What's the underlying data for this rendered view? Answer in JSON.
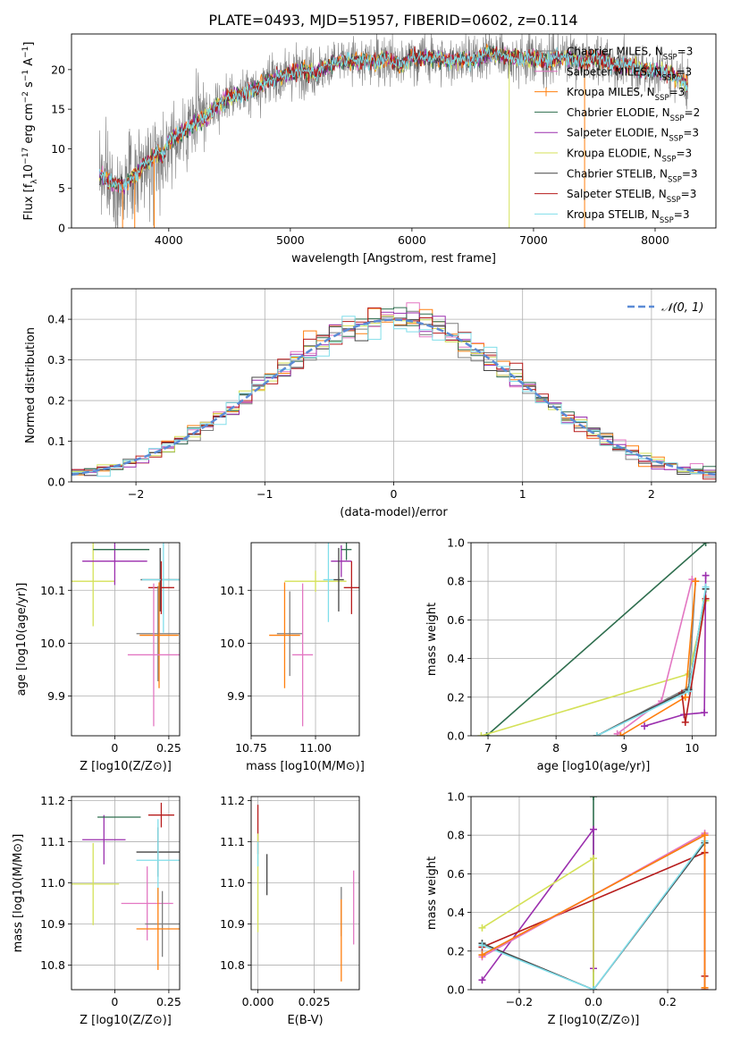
{
  "title": "PLATE=0493, MJD=51957, FIBERID=0602, z=0.114",
  "colors": {
    "chabrier_miles": "#7f7f7f",
    "salpeter_miles": "#e377c2",
    "kroupa_miles": "#ff7f0e",
    "chabrier_elodie": "#2e6e4e",
    "salpeter_elodie": "#9b2fae",
    "kroupa_elodie": "#d4e157",
    "chabrier_stelib": "#444444",
    "salpeter_stelib": "#b71c1c",
    "kroupa_stelib": "#80deea",
    "normal_curve": "#5b8bd6"
  },
  "series_names": [
    "Chabrier MILES, N",
    "Salpeter MILES, N",
    "Kroupa MILES, N",
    "Chabrier ELODIE, N",
    "Salpeter ELODIE, N",
    "Kroupa ELODIE, N",
    "Chabrier STELIB, N",
    "Salpeter STELIB, N",
    "Kroupa STELIB, N"
  ],
  "series_nssp": [
    "3",
    "3",
    "3",
    "2",
    "3",
    "3",
    "3",
    "3",
    "3"
  ],
  "nssp_sub": "SSP",
  "chart_data": [
    {
      "type": "line",
      "id": "spectrum",
      "xlabel": "wavelength [Angstrom, rest frame]",
      "ylabel_parts": [
        "Flux [f",
        "λ",
        "10",
        "−17",
        " erg cm",
        "−2",
        " s",
        "−1",
        " A",
        "−1",
        "]"
      ],
      "xlim": [
        3200,
        8500
      ],
      "ylim": [
        0,
        24.5
      ],
      "xticks": [
        4000,
        5000,
        6000,
        7000,
        8000
      ],
      "yticks": [
        0,
        5,
        10,
        15,
        20
      ],
      "continuum": [
        [
          3450,
          6.5
        ],
        [
          3550,
          5.5
        ],
        [
          3650,
          5.5
        ],
        [
          3700,
          6.5
        ],
        [
          3750,
          7.0
        ],
        [
          3800,
          8.0
        ],
        [
          3850,
          8.5
        ],
        [
          3900,
          9.5
        ],
        [
          3950,
          9.0
        ],
        [
          4000,
          11.0
        ],
        [
          4100,
          12.0
        ],
        [
          4200,
          13.0
        ],
        [
          4300,
          14.0
        ],
        [
          4400,
          15.5
        ],
        [
          4500,
          16.5
        ],
        [
          4600,
          17.0
        ],
        [
          4700,
          17.5
        ],
        [
          4800,
          18.5
        ],
        [
          4900,
          19.0
        ],
        [
          5000,
          19.5
        ],
        [
          5100,
          20.0
        ],
        [
          5200,
          19.5
        ],
        [
          5300,
          20.5
        ],
        [
          5400,
          21.0
        ],
        [
          5500,
          21.0
        ],
        [
          5600,
          21.0
        ],
        [
          5700,
          21.0
        ],
        [
          5800,
          21.5
        ],
        [
          5900,
          20.5
        ],
        [
          6000,
          21.5
        ],
        [
          6100,
          21.5
        ],
        [
          6200,
          21.5
        ],
        [
          6300,
          21.0
        ],
        [
          6400,
          21.5
        ],
        [
          6500,
          21.0
        ],
        [
          6600,
          22.0
        ],
        [
          6700,
          22.0
        ],
        [
          6800,
          21.5
        ],
        [
          6900,
          21.5
        ],
        [
          7000,
          21.5
        ],
        [
          7100,
          21.0
        ],
        [
          7200,
          21.5
        ],
        [
          7300,
          21.5
        ],
        [
          7400,
          21.0
        ],
        [
          7500,
          21.5
        ],
        [
          7600,
          21.0
        ],
        [
          7700,
          20.5
        ],
        [
          7800,
          20.5
        ],
        [
          7900,
          20.0
        ],
        [
          8000,
          20.0
        ],
        [
          8100,
          19.5
        ],
        [
          8200,
          19.0
        ],
        [
          8270,
          18.0
        ]
      ]
    },
    {
      "type": "line",
      "id": "residuals",
      "xlabel": "(data-model)/error",
      "ylabel": "Normed distribution",
      "legend": "𝒩(0, 1)",
      "xlim": [
        -2.5,
        2.5
      ],
      "ylim": [
        0,
        0.475
      ],
      "xticks": [
        -2,
        -1,
        0,
        1,
        2
      ],
      "yticks": [
        0.0,
        0.1,
        0.2,
        0.3,
        0.4
      ],
      "bin_width": 0.1
    },
    {
      "type": "scatter",
      "id": "age_vs_Z",
      "xlabel": "Z [log10(Z/Z⊙)]",
      "ylabel": "age  [log10(age/yr)]",
      "xlim": [
        -0.2,
        0.3
      ],
      "ylim": [
        9.825,
        10.19
      ],
      "xticks": [
        0.0,
        0.25
      ],
      "yticks": [
        9.9,
        10.0,
        10.1
      ],
      "points": [
        {
          "s": "kroupa_elodie",
          "x": -0.1,
          "y": 10.117,
          "xe": 0.1,
          "ye": 0.085
        },
        {
          "s": "salpeter_elodie",
          "x": 0.0,
          "y": 10.155,
          "xe": 0.15,
          "ye": 0.045
        },
        {
          "s": "chabrier_elodie",
          "x": 0.03,
          "y": 10.177,
          "xe": 0.13,
          "ye": 0.0
        },
        {
          "s": "chabrier_stelib",
          "x": 0.21,
          "y": 10.12,
          "xe": 0.09,
          "ye": 0.06
        },
        {
          "s": "kroupa_stelib",
          "x": 0.225,
          "y": 10.12,
          "xe": 0.1,
          "ye": 0.1
        },
        {
          "s": "salpeter_stelib",
          "x": 0.215,
          "y": 10.105,
          "xe": 0.06,
          "ye": 0.05
        },
        {
          "s": "chabrier_miles",
          "x": 0.2,
          "y": 10.018,
          "xe": 0.1,
          "ye": 0.09
        },
        {
          "s": "kroupa_miles",
          "x": 0.205,
          "y": 10.015,
          "xe": 0.09,
          "ye": 0.1
        },
        {
          "s": "salpeter_miles",
          "x": 0.18,
          "y": 9.978,
          "xe": 0.12,
          "ye": 0.135
        }
      ]
    },
    {
      "type": "scatter",
      "id": "age_vs_mass",
      "xlabel": "mass [log10(M/M⊙)]",
      "ylabel": "",
      "xlim": [
        10.75,
        11.17
      ],
      "ylim": [
        9.825,
        10.19
      ],
      "xticks": [
        10.75,
        11.0
      ],
      "xticklabels": [
        "10.75",
        "11.00"
      ],
      "yticks": [
        9.9,
        10.0,
        10.1
      ],
      "points": [
        {
          "s": "kroupa_elodie",
          "x": 11.0,
          "y": 10.117,
          "xe": 0.12,
          "ye": 0.02
        },
        {
          "s": "salpeter_elodie",
          "x": 11.1,
          "y": 10.155,
          "xe": 0.04,
          "ye": 0.03
        },
        {
          "s": "chabrier_elodie",
          "x": 11.12,
          "y": 10.177,
          "xe": 0.02,
          "ye": 0.02
        },
        {
          "s": "chabrier_stelib",
          "x": 11.09,
          "y": 10.12,
          "xe": 0.02,
          "ye": 0.06
        },
        {
          "s": "kroupa_stelib",
          "x": 11.05,
          "y": 10.12,
          "xe": 0.02,
          "ye": 0.08
        },
        {
          "s": "salpeter_stelib",
          "x": 11.14,
          "y": 10.105,
          "xe": 0.03,
          "ye": 0.05
        },
        {
          "s": "chabrier_miles",
          "x": 10.9,
          "y": 10.018,
          "xe": 0.05,
          "ye": 0.08
        },
        {
          "s": "kroupa_miles",
          "x": 10.88,
          "y": 10.015,
          "xe": 0.06,
          "ye": 0.1
        },
        {
          "s": "salpeter_miles",
          "x": 10.95,
          "y": 9.978,
          "xe": 0.04,
          "ye": 0.135
        }
      ]
    },
    {
      "type": "line",
      "id": "massweight_vs_age",
      "xlabel": "age  [log10(age/yr)]",
      "ylabel": "mass weight",
      "xlim": [
        6.75,
        10.35
      ],
      "ylim": [
        0,
        1
      ],
      "xticks": [
        7,
        8,
        9,
        10
      ],
      "yticks": [
        0.0,
        0.2,
        0.4,
        0.6,
        0.8,
        1.0
      ],
      "lines": [
        {
          "s": "chabrier_elodie",
          "pts": [
            [
              6.98,
              0.0
            ],
            [
              10.2,
              1.0
            ]
          ]
        },
        {
          "s": "kroupa_elodie",
          "pts": [
            [
              6.9,
              0.0
            ],
            [
              9.95,
              0.32
            ],
            [
              10.2,
              0.7
            ]
          ]
        },
        {
          "s": "chabrier_miles",
          "pts": [
            [
              8.6,
              0.0
            ],
            [
              9.95,
              0.25
            ],
            [
              10.05,
              0.8
            ]
          ]
        },
        {
          "s": "salpeter_miles",
          "pts": [
            [
              8.9,
              0.01
            ],
            [
              9.55,
              0.18
            ],
            [
              10.0,
              0.81
            ]
          ]
        },
        {
          "s": "kroupa_miles",
          "pts": [
            [
              8.95,
              0.0
            ],
            [
              9.9,
              0.2
            ],
            [
              10.05,
              0.8
            ]
          ]
        },
        {
          "s": "salpeter_elodie",
          "pts": [
            [
              9.3,
              0.05
            ],
            [
              9.88,
              0.11
            ],
            [
              10.18,
              0.12
            ],
            [
              10.2,
              0.83
            ]
          ]
        },
        {
          "s": "salpeter_stelib",
          "pts": [
            [
              9.85,
              0.22
            ],
            [
              9.9,
              0.07
            ],
            [
              10.2,
              0.71
            ]
          ]
        },
        {
          "s": "chabrier_stelib",
          "pts": [
            [
              8.6,
              0.0
            ],
            [
              9.95,
              0.24
            ],
            [
              10.2,
              0.76
            ]
          ]
        },
        {
          "s": "kroupa_stelib",
          "pts": [
            [
              8.6,
              0.0
            ],
            [
              9.95,
              0.23
            ],
            [
              10.2,
              0.77
            ]
          ]
        }
      ]
    },
    {
      "type": "scatter",
      "id": "mass_vs_Z",
      "xlabel": "Z [log10(Z/Z⊙)]",
      "ylabel": "mass [log10(M/M⊙)]",
      "xlim": [
        -0.2,
        0.3
      ],
      "ylim": [
        10.74,
        11.21
      ],
      "xticks": [
        0.0,
        0.25
      ],
      "yticks": [
        10.8,
        10.9,
        11.0,
        11.1,
        11.2
      ],
      "points": [
        {
          "s": "kroupa_elodie",
          "x": -0.1,
          "y": 10.997,
          "xe": 0.12,
          "ye": 0.1
        },
        {
          "s": "salpeter_elodie",
          "x": -0.05,
          "y": 11.105,
          "xe": 0.1,
          "ye": 0.06
        },
        {
          "s": "chabrier_elodie",
          "x": 0.02,
          "y": 11.16,
          "xe": 0.1,
          "ye": 0.0
        },
        {
          "s": "salpeter_stelib",
          "x": 0.215,
          "y": 11.165,
          "xe": 0.06,
          "ye": 0.03
        },
        {
          "s": "chabrier_stelib",
          "x": 0.2,
          "y": 11.075,
          "xe": 0.1,
          "ye": 0.06
        },
        {
          "s": "kroupa_stelib",
          "x": 0.2,
          "y": 11.055,
          "xe": 0.1,
          "ye": 0.1
        },
        {
          "s": "salpeter_miles",
          "x": 0.15,
          "y": 10.95,
          "xe": 0.12,
          "ye": 0.09
        },
        {
          "s": "chabrier_miles",
          "x": 0.22,
          "y": 10.9,
          "xe": 0.08,
          "ye": 0.08
        },
        {
          "s": "kroupa_miles",
          "x": 0.2,
          "y": 10.888,
          "xe": 0.1,
          "ye": 0.1
        }
      ]
    },
    {
      "type": "scatter",
      "id": "mass_vs_ebv",
      "xlabel": "E(B-V)",
      "ylabel": "",
      "xlim": [
        -0.003,
        0.045
      ],
      "ylim": [
        10.74,
        11.21
      ],
      "xticks": [
        0.0,
        0.025
      ],
      "xticklabels": [
        "0.000",
        "0.025"
      ],
      "yticks": [
        10.8,
        10.9,
        11.0,
        11.1,
        11.2
      ],
      "points": [
        {
          "s": "salpeter_stelib",
          "x": 0.0,
          "y": 11.13,
          "xe": 0.0,
          "ye": 0.06
        },
        {
          "s": "kroupa_elodie",
          "x": 0.0,
          "y": 11.0,
          "xe": 0.0,
          "ye": 0.12
        },
        {
          "s": "chabrier_stelib",
          "x": 0.004,
          "y": 11.02,
          "xe": 0.0,
          "ye": 0.05
        },
        {
          "s": "kroupa_stelib",
          "x": 0.0,
          "y": 11.07,
          "xe": 0.0,
          "ye": 0.03
        },
        {
          "s": "chabrier_miles",
          "x": 0.037,
          "y": 10.93,
          "xe": 0.0,
          "ye": 0.06
        },
        {
          "s": "kroupa_miles",
          "x": 0.037,
          "y": 10.86,
          "xe": 0.0,
          "ye": 0.1
        },
        {
          "s": "salpeter_miles",
          "x": 0.0425,
          "y": 10.94,
          "xe": 0.0,
          "ye": 0.09
        }
      ]
    },
    {
      "type": "line",
      "id": "massweight_vs_Z",
      "xlabel": "Z [log10(Z/Z⊙)]",
      "ylabel": "mass weight",
      "xlim": [
        -0.33,
        0.33
      ],
      "ylim": [
        0,
        1
      ],
      "xticks": [
        -0.2,
        0.0,
        0.2
      ],
      "xticklabels": [
        "−0.2",
        "0.0",
        "0.2"
      ],
      "yticks": [
        0.0,
        0.2,
        0.4,
        0.6,
        0.8,
        1.0
      ],
      "lines": [
        {
          "s": "chabrier_elodie",
          "pts": [
            [
              0.0,
              0.0
            ],
            [
              0.0,
              1.0
            ]
          ]
        },
        {
          "s": "salpeter_elodie",
          "pts": [
            [
              -0.3,
              0.05
            ],
            [
              0.0,
              0.83
            ],
            [
              0.0,
              0.11
            ]
          ]
        },
        {
          "s": "kroupa_elodie",
          "pts": [
            [
              -0.3,
              0.32
            ],
            [
              0.0,
              0.68
            ],
            [
              0.0,
              0.0
            ]
          ]
        },
        {
          "s": "salpeter_stelib",
          "pts": [
            [
              -0.3,
              0.22
            ],
            [
              0.3,
              0.71
            ],
            [
              0.3,
              0.07
            ],
            [
              0.3,
              0.0
            ]
          ]
        },
        {
          "s": "chabrier_stelib",
          "pts": [
            [
              -0.3,
              0.24
            ],
            [
              0.0,
              0.0
            ],
            [
              0.3,
              0.76
            ]
          ]
        },
        {
          "s": "kroupa_stelib",
          "pts": [
            [
              -0.3,
              0.23
            ],
            [
              0.0,
              0.0
            ],
            [
              0.3,
              0.77
            ]
          ]
        },
        {
          "s": "chabrier_miles",
          "pts": [
            [
              -0.3,
              0.18
            ],
            [
              0.3,
              0.8
            ]
          ]
        },
        {
          "s": "salpeter_miles",
          "pts": [
            [
              -0.3,
              0.17
            ],
            [
              0.3,
              0.81
            ]
          ]
        },
        {
          "s": "kroupa_miles",
          "pts": [
            [
              -0.3,
              0.18
            ],
            [
              0.3,
              0.8
            ],
            [
              0.3,
              0.01
            ]
          ]
        }
      ]
    }
  ]
}
